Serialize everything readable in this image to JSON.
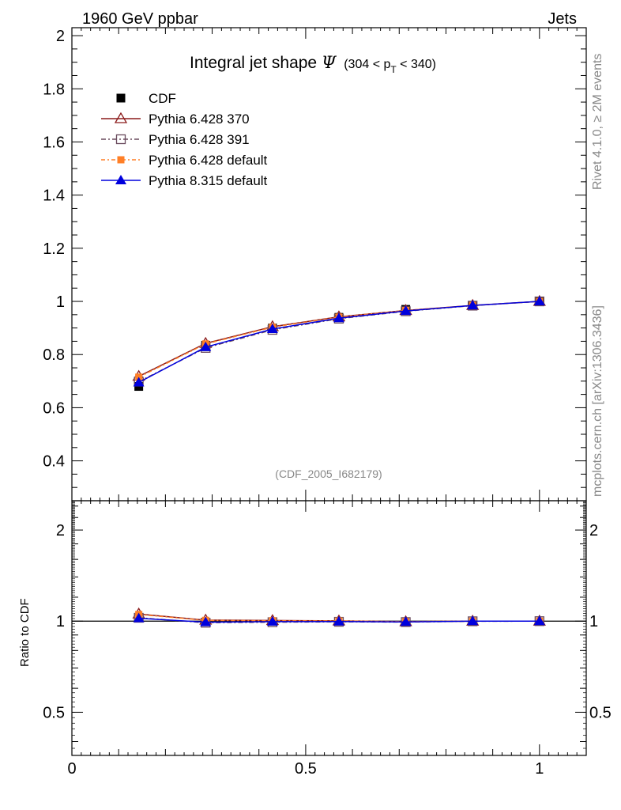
{
  "header": {
    "left": "1960 GeV ppbar",
    "right": "Jets"
  },
  "side": {
    "rivet": "Rivet 4.1.0, ≥ 2M events",
    "mcplots": "mcplots.cern.ch [arXiv:1306.3436]"
  },
  "chart_data": {
    "type": "line",
    "title_main": "Integral jet shape",
    "title_symbol": "Ψ",
    "title_range": [
      "(304 < p",
      "T",
      " < 340)"
    ],
    "analysis_id": "(CDF_2005_I682179)",
    "x": [
      0.143,
      0.286,
      0.429,
      0.571,
      0.714,
      0.857,
      1.0
    ],
    "xlim": [
      0,
      1.1
    ],
    "ylim_main": [
      0.25,
      2.03
    ],
    "ylim_ratio": [
      0.36,
      2.5
    ],
    "ylabel_ratio": "Ratio to CDF",
    "main_ticks": [
      "0.4",
      "0.6",
      "0.8",
      "1",
      "1.2",
      "1.4",
      "1.6",
      "1.8",
      "2"
    ],
    "ratio_ticks": [
      "0.5",
      "1",
      "2"
    ],
    "x_ticks": [
      "0",
      "0.5",
      "1"
    ],
    "series": [
      {
        "name": "CDF",
        "color": "#000000",
        "marker": "square",
        "values": [
          0.68,
          0.835,
          0.9,
          0.94,
          0.97,
          0.985,
          1.0
        ],
        "ratio": [
          1.0,
          1.0,
          1.0,
          1.0,
          1.0,
          1.0,
          1.0
        ]
      },
      {
        "name": "Pythia 6.428 370",
        "color": "#8b1a1a",
        "marker": "triangle-open",
        "values": [
          0.718,
          0.842,
          0.905,
          0.942,
          0.966,
          0.985,
          1.0
        ],
        "ratio": [
          1.056,
          1.008,
          1.005,
          1.002,
          0.996,
          1.0,
          1.0
        ]
      },
      {
        "name": "Pythia 6.428 391",
        "color": "#6a4b5e",
        "marker": "square-open",
        "values": [
          0.698,
          0.825,
          0.893,
          0.935,
          0.963,
          0.984,
          1.0
        ],
        "ratio": [
          1.026,
          0.988,
          0.992,
          0.995,
          0.993,
          0.999,
          1.0
        ]
      },
      {
        "name": "Pythia 6.428 default",
        "color": "#ff7f27",
        "marker": "square-filled",
        "values": [
          0.715,
          0.84,
          0.903,
          0.941,
          0.966,
          0.985,
          1.0
        ],
        "ratio": [
          1.052,
          1.006,
          1.003,
          1.001,
          0.996,
          1.0,
          1.0
        ]
      },
      {
        "name": "Pythia 8.315 default",
        "color": "#0000dd",
        "marker": "triangle-filled",
        "values": [
          0.695,
          0.828,
          0.896,
          0.937,
          0.964,
          0.985,
          1.0
        ],
        "ratio": [
          1.022,
          0.992,
          0.996,
          0.997,
          0.994,
          1.0,
          1.0
        ]
      }
    ]
  }
}
